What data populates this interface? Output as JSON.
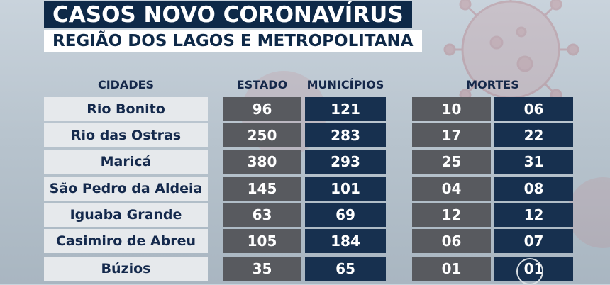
{
  "title": "CASOS NOVO CORONAVÍRUS",
  "subtitle": "REGIÃO DOS LAGOS E METROPOLITANA",
  "headers": {
    "cidades": "CIDADES",
    "estado": "ESTADO",
    "municipios": "MUNICÍPIOS",
    "mortes": "MORTES"
  },
  "rows": [
    {
      "city": "Rio Bonito",
      "casos_estado": "96",
      "casos_municipios": "121",
      "mortes_estado": "10",
      "mortes_municipios": "06"
    },
    {
      "city": "Rio das Ostras",
      "casos_estado": "250",
      "casos_municipios": "283",
      "mortes_estado": "17",
      "mortes_municipios": "22"
    },
    {
      "city": "Maricá",
      "casos_estado": "380",
      "casos_municipios": "293",
      "mortes_estado": "25",
      "mortes_municipios": "31"
    },
    {
      "city": "São Pedro da Aldeia",
      "casos_estado": "145",
      "casos_municipios": "101",
      "mortes_estado": "04",
      "mortes_municipios": "08"
    },
    {
      "city": "Iguaba Grande",
      "casos_estado": "63",
      "casos_municipios": "69",
      "mortes_estado": "12",
      "mortes_municipios": "12"
    },
    {
      "city": "Casimiro de Abreu",
      "casos_estado": "105",
      "casos_municipios": "184",
      "mortes_estado": "06",
      "mortes_municipios": "07"
    },
    {
      "city": "Búzios",
      "casos_estado": "35",
      "casos_municipios": "65",
      "mortes_estado": "01",
      "mortes_municipios": "01"
    }
  ],
  "colors": {
    "title_bg": "#0e2948",
    "estado_cell": "#585a5f",
    "municipios_cell": "#17304f",
    "city_cell": "#e6e9ec"
  },
  "icons": [
    "virus-illustration",
    "play-icon"
  ]
}
